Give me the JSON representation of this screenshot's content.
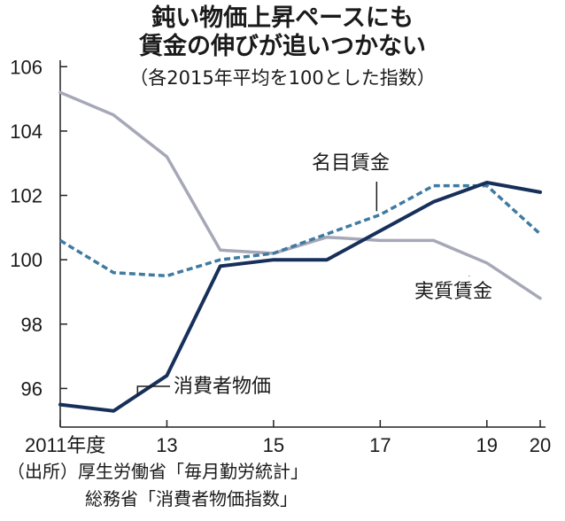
{
  "title_lines": [
    "鈍い物価上昇ペースにも",
    "賃金の伸びが追いつかない"
  ],
  "subtitle": "（各2015年平均を100とした指数）",
  "source_lines": [
    "（出所）厚生労働省「毎月勤労統計」",
    "総務省「消費者物価指数」"
  ],
  "colors": {
    "cpi": "#17305a",
    "nominal": "#3f7ba1",
    "real": "#a6a8b8",
    "axis": "#222222"
  },
  "chart_data": {
    "type": "line",
    "x": [
      2011,
      2012,
      2013,
      2014,
      2015,
      2016,
      2017,
      2018,
      2019,
      2020
    ],
    "x_tick_values": [
      2011,
      2013,
      2015,
      2017,
      2019,
      2020
    ],
    "x_tick_labels": [
      "2011年度",
      "13",
      "15",
      "17",
      "19",
      "20"
    ],
    "y_ticks": [
      96,
      98,
      100,
      102,
      104,
      106
    ],
    "ylim": [
      94.8,
      106.2
    ],
    "series": [
      {
        "key": "cpi",
        "name": "消費者物価",
        "style": "solid",
        "values": [
          95.5,
          95.3,
          96.4,
          99.8,
          100.0,
          100.0,
          100.9,
          101.8,
          102.4,
          102.1
        ]
      },
      {
        "key": "nominal",
        "name": "名目賃金",
        "style": "dashed",
        "values": [
          100.6,
          99.6,
          99.5,
          100.0,
          100.2,
          100.8,
          101.4,
          102.3,
          102.3,
          100.8
        ]
      },
      {
        "key": "real",
        "name": "実質賃金",
        "style": "solid",
        "values": [
          105.2,
          104.5,
          103.2,
          100.3,
          100.2,
          100.7,
          100.6,
          100.6,
          99.9,
          98.8
        ]
      }
    ]
  }
}
